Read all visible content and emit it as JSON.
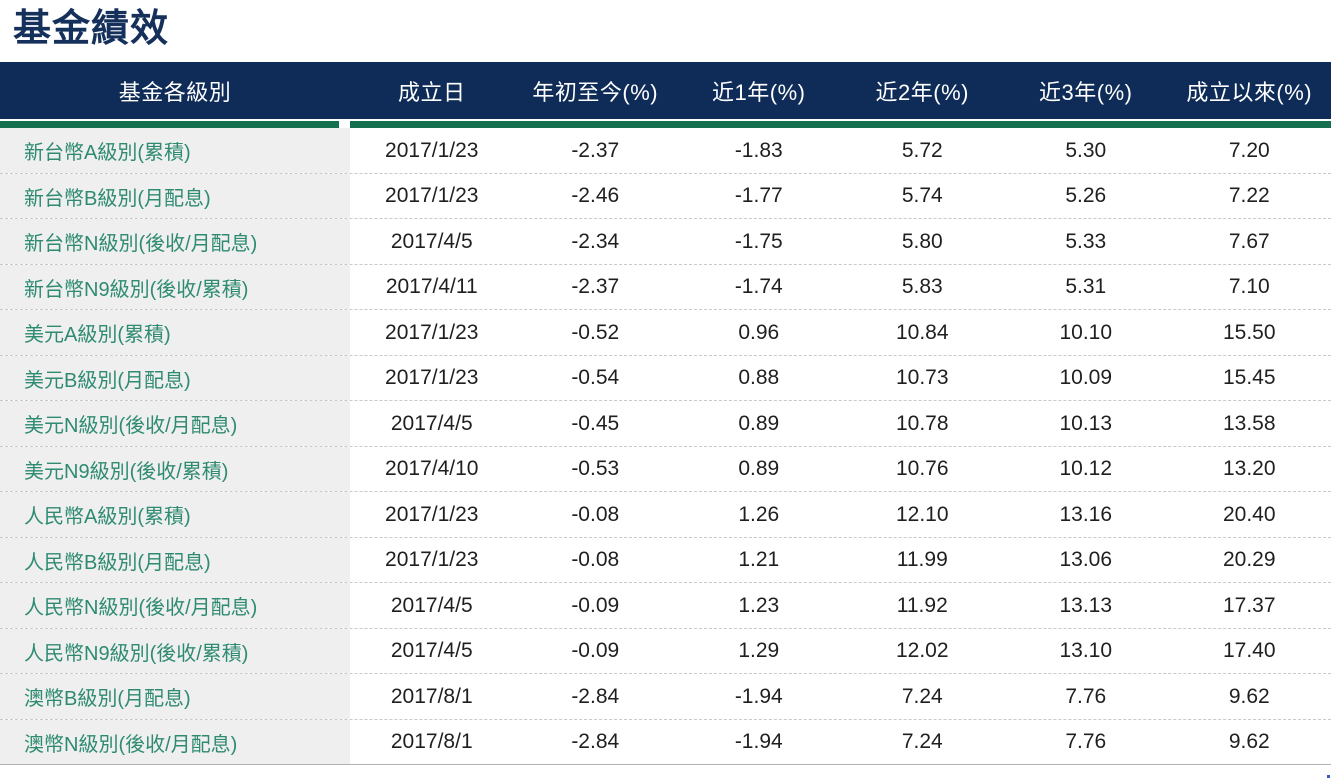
{
  "page": {
    "title": "基金績效"
  },
  "colors": {
    "title_navy": "#16305c",
    "header_bg_navy": "#0e2c57",
    "header_text": "#ffffff",
    "divider_green": "#14704f",
    "fund_name_green": "#2e8b72",
    "fund_name_col_bg": "#efefef",
    "value_text": "#1f1f1f"
  },
  "table": {
    "columns": [
      {
        "label": "基金各級別"
      },
      {
        "label": "成立日"
      },
      {
        "label": "年初至今(%)"
      },
      {
        "label": "近1年(%)"
      },
      {
        "label": "近2年(%)"
      },
      {
        "label": "近3年(%)"
      },
      {
        "label": "成立以來(%)"
      }
    ],
    "rows": [
      [
        "新台幣A級別(累積)",
        "2017/1/23",
        "-2.37",
        "-1.83",
        "5.72",
        "5.30",
        "7.20"
      ],
      [
        "新台幣B級別(月配息)",
        "2017/1/23",
        "-2.46",
        "-1.77",
        "5.74",
        "5.26",
        "7.22"
      ],
      [
        "新台幣N級別(後收/月配息)",
        "2017/4/5",
        "-2.34",
        "-1.75",
        "5.80",
        "5.33",
        "7.67"
      ],
      [
        "新台幣N9級別(後收/累積)",
        "2017/4/11",
        "-2.37",
        "-1.74",
        "5.83",
        "5.31",
        "7.10"
      ],
      [
        "美元A級別(累積)",
        "2017/1/23",
        "-0.52",
        "0.96",
        "10.84",
        "10.10",
        "15.50"
      ],
      [
        "美元B級別(月配息)",
        "2017/1/23",
        "-0.54",
        "0.88",
        "10.73",
        "10.09",
        "15.45"
      ],
      [
        "美元N級別(後收/月配息)",
        "2017/4/5",
        "-0.45",
        "0.89",
        "10.78",
        "10.13",
        "13.58"
      ],
      [
        "美元N9級別(後收/累積)",
        "2017/4/10",
        "-0.53",
        "0.89",
        "10.76",
        "10.12",
        "13.20"
      ],
      [
        "人民幣A級別(累積)",
        "2017/1/23",
        "-0.08",
        "1.26",
        "12.10",
        "13.16",
        "20.40"
      ],
      [
        "人民幣B級別(月配息)",
        "2017/1/23",
        "-0.08",
        "1.21",
        "11.99",
        "13.06",
        "20.29"
      ],
      [
        "人民幣N級別(後收/月配息)",
        "2017/4/5",
        "-0.09",
        "1.23",
        "11.92",
        "13.13",
        "17.37"
      ],
      [
        "人民幣N9級別(後收/累積)",
        "2017/4/5",
        "-0.09",
        "1.29",
        "12.02",
        "13.10",
        "17.40"
      ],
      [
        "澳幣B級別(月配息)",
        "2017/8/1",
        "-2.84",
        "-1.94",
        "7.24",
        "7.76",
        "9.62"
      ],
      [
        "澳幣N級別(後收/月配息)",
        "2017/8/1",
        "-2.84",
        "-1.94",
        "7.24",
        "7.76",
        "9.62"
      ]
    ]
  }
}
